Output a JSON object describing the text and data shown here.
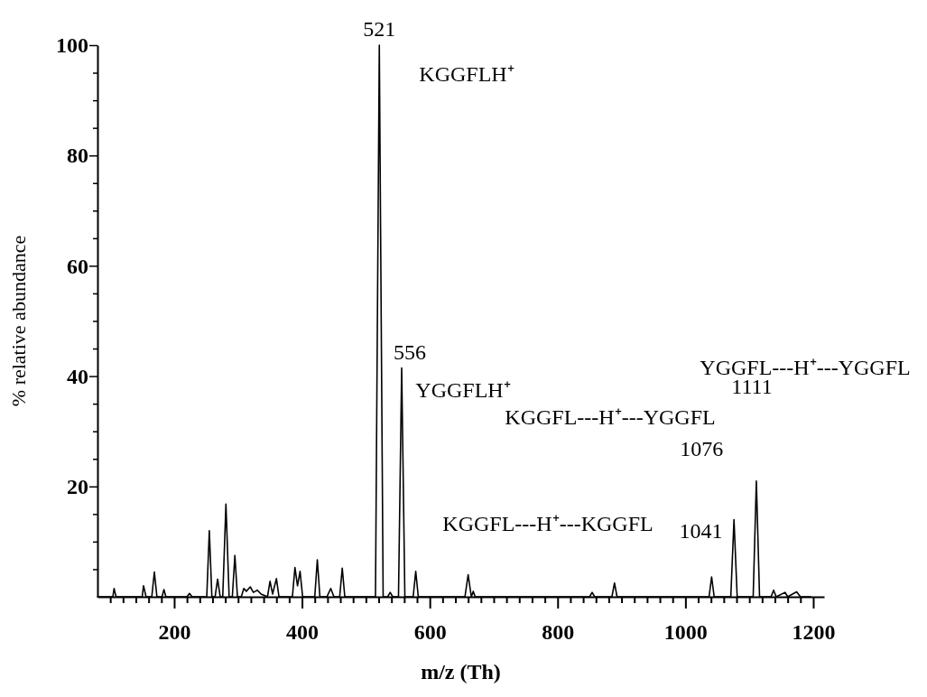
{
  "chart_data": {
    "type": "line",
    "xlabel": "m/z (Th)",
    "ylabel": "% relative abundance",
    "xlim": [
      80,
      1217
    ],
    "ylim": [
      0,
      100
    ],
    "xticks": [
      {
        "value": 100,
        "label": null
      },
      {
        "value": 120,
        "label": null
      },
      {
        "value": 140,
        "label": null
      },
      {
        "value": 160,
        "label": null
      },
      {
        "value": 180,
        "label": null
      },
      200,
      {
        "value": 220,
        "label": null
      },
      {
        "value": 240,
        "label": null
      },
      {
        "value": 260,
        "label": null
      },
      {
        "value": 280,
        "label": null
      },
      {
        "value": 300,
        "label": null
      },
      {
        "value": 320,
        "label": null
      },
      {
        "value": 340,
        "label": null
      },
      {
        "value": 360,
        "label": null
      },
      {
        "value": 380,
        "label": null
      },
      400,
      {
        "value": 420,
        "label": null
      },
      {
        "value": 440,
        "label": null
      },
      {
        "value": 460,
        "label": null
      },
      {
        "value": 480,
        "label": null
      },
      {
        "value": 500,
        "label": null
      },
      {
        "value": 520,
        "label": null
      },
      {
        "value": 540,
        "label": null
      },
      {
        "value": 560,
        "label": null
      },
      {
        "value": 580,
        "label": null
      },
      600,
      {
        "value": 620,
        "label": null
      },
      {
        "value": 640,
        "label": null
      },
      {
        "value": 660,
        "label": null
      },
      {
        "value": 680,
        "label": null
      },
      {
        "value": 700,
        "label": null
      },
      {
        "value": 720,
        "label": null
      },
      {
        "value": 740,
        "label": null
      },
      {
        "value": 760,
        "label": null
      },
      {
        "value": 780,
        "label": null
      },
      800,
      {
        "value": 820,
        "label": null
      },
      {
        "value": 840,
        "label": null
      },
      {
        "value": 860,
        "label": null
      },
      {
        "value": 880,
        "label": null
      },
      {
        "value": 900,
        "label": null
      },
      {
        "value": 920,
        "label": null
      },
      {
        "value": 940,
        "label": null
      },
      {
        "value": 960,
        "label": null
      },
      {
        "value": 980,
        "label": null
      },
      1000,
      {
        "value": 1020,
        "label": null
      },
      {
        "value": 1040,
        "label": null
      },
      {
        "value": 1060,
        "label": null
      },
      {
        "value": 1080,
        "label": null
      },
      {
        "value": 1100,
        "label": null
      },
      {
        "value": 1120,
        "label": null
      },
      {
        "value": 1140,
        "label": null
      },
      {
        "value": 1160,
        "label": null
      },
      {
        "value": 1180,
        "label": null
      },
      1200
    ],
    "yticks": [
      {
        "value": 5,
        "label": null
      },
      {
        "value": 10,
        "label": null
      },
      {
        "value": 15,
        "label": null
      },
      20,
      {
        "value": 25,
        "label": null
      },
      {
        "value": 30,
        "label": null
      },
      {
        "value": 35,
        "label": null
      },
      40,
      {
        "value": 45,
        "label": null
      },
      {
        "value": 50,
        "label": null
      },
      {
        "value": 55,
        "label": null
      },
      60,
      {
        "value": 65,
        "label": null
      },
      {
        "value": 70,
        "label": null
      },
      {
        "value": 75,
        "label": null
      },
      80,
      {
        "value": 85,
        "label": null
      },
      {
        "value": 90,
        "label": null
      },
      {
        "value": 95,
        "label": null
      },
      100
    ],
    "grid": false,
    "marker": "none",
    "line_style": "solid",
    "series": [
      {
        "color": "#000000",
        "x": [
          80,
          104,
          106,
          109,
          150,
          152,
          156,
          165,
          169,
          173,
          181,
          184,
          187,
          220,
          224,
          228,
          251,
          255,
          259,
          264,
          268,
          272,
          276,
          281,
          286,
          291,
          295,
          299,
          305,
          309,
          313,
          319,
          324,
          330,
          336,
          346,
          350,
          354,
          360,
          364,
          385,
          389,
          393,
          397,
          401,
          420,
          424,
          428,
          439,
          445,
          450,
          459,
          463,
          467,
          515,
          521,
          527,
          534,
          538,
          542,
          551,
          556,
          561,
          574,
          578,
          582,
          655,
          660,
          665,
          668,
          671,
          850,
          854,
          858,
          885,
          889,
          893,
          1037,
          1041,
          1045,
          1071,
          1076,
          1081,
          1106,
          1111,
          1116,
          1134,
          1138,
          1142,
          1156,
          1160,
          1174,
          1180,
          1196
        ],
        "values": [
          0,
          0,
          1.5,
          0,
          0,
          2,
          0,
          0,
          4.5,
          0,
          0,
          1.3,
          0,
          0,
          0.6,
          0,
          0,
          12,
          0,
          0,
          3.2,
          0,
          0,
          16.8,
          0,
          0,
          7.5,
          0,
          0,
          1.5,
          1,
          1.8,
          0.8,
          1.2,
          0.5,
          0,
          2.8,
          0.5,
          3.3,
          0,
          0,
          5.3,
          2,
          4.6,
          0,
          0,
          6.7,
          0,
          0,
          1.5,
          0,
          0,
          5.2,
          0,
          0,
          100,
          0,
          0,
          0.8,
          0,
          0,
          41.5,
          0,
          0,
          4.6,
          0,
          0,
          4,
          0,
          1,
          0,
          0,
          0.8,
          0,
          0,
          2.5,
          0,
          0,
          3.6,
          0,
          0,
          14,
          0,
          0,
          21,
          0,
          0,
          1.2,
          0,
          0.8,
          0,
          0.9,
          0,
          0
        ]
      }
    ],
    "annotations": [
      {
        "text": "521",
        "x": 521,
        "y": 100
      },
      "KGGFLH⁺",
      {
        "text": "556",
        "x": 556,
        "y": 41.5
      },
      "YGGFLH⁺",
      "YGGFL---H⁺---YGGFL",
      "1111",
      "KGGFL---H⁺---YGGFL",
      {
        "text": "1076",
        "x": 1076,
        "y": 14
      },
      "KGGFL---H⁺---KGGFL",
      {
        "text": "1041",
        "x": 1041,
        "y": 3.6
      }
    ]
  }
}
